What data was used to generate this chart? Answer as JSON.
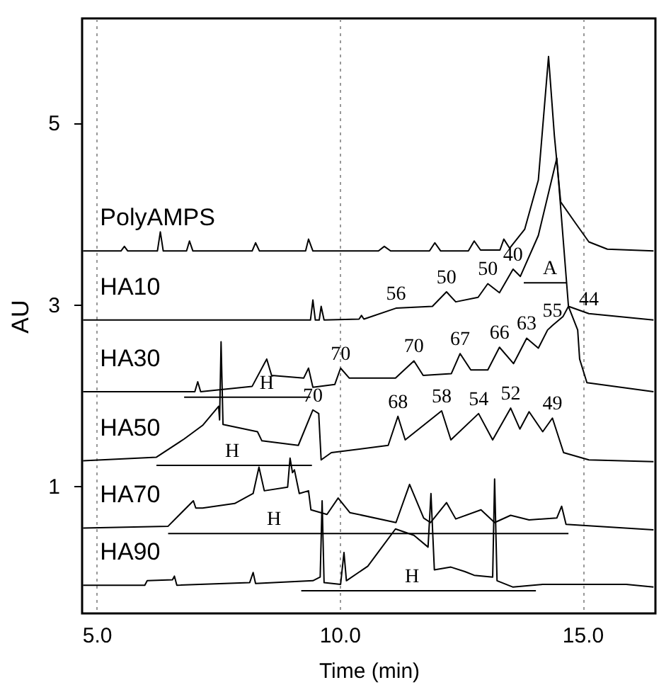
{
  "chart_data": {
    "type": "line",
    "xlabel": "Time (min)",
    "ylabel": "AU",
    "xlim": [
      4.7,
      16.5
    ],
    "ylim": [
      -0.4,
      6.15
    ],
    "xticks": [
      {
        "value": 5,
        "label": "5.0"
      },
      {
        "value": 10,
        "label": "10.0"
      },
      {
        "value": 15,
        "label": "15.0"
      }
    ],
    "yticks": [
      {
        "value": 1,
        "label": "1"
      },
      {
        "value": 3,
        "label": "3"
      },
      {
        "value": 5,
        "label": "5"
      }
    ],
    "grid": "x",
    "legend": "left",
    "line_style": "solid",
    "marker": "none",
    "series": [
      {
        "name": "PolyAMPS",
        "color": "#000000",
        "x": [
          4.72,
          5.5,
          5.57,
          5.64,
          6.25,
          6.31,
          6.37,
          6.85,
          6.91,
          6.98,
          8.2,
          8.27,
          8.35,
          9.3,
          9.36,
          9.45,
          10.8,
          10.92,
          11.05,
          11.85,
          11.96,
          12.08,
          12.65,
          12.77,
          12.9,
          13.3,
          13.38,
          13.5,
          13.81,
          14.09,
          14.3,
          14.42,
          14.55,
          14.85,
          15.13,
          15.51,
          16.46
        ],
        "values": [
          3.59,
          3.59,
          3.64,
          3.59,
          3.59,
          3.8,
          3.59,
          3.59,
          3.7,
          3.59,
          3.59,
          3.68,
          3.59,
          3.59,
          3.72,
          3.59,
          3.59,
          3.64,
          3.59,
          3.59,
          3.68,
          3.59,
          3.59,
          3.7,
          3.6,
          3.6,
          3.72,
          3.62,
          3.83,
          4.37,
          5.73,
          4.86,
          4.13,
          3.9,
          3.69,
          3.61,
          3.59
        ]
      },
      {
        "name": "HA10",
        "color": "#000000",
        "x": [
          4.72,
          9.4,
          9.45,
          9.5,
          9.58,
          9.62,
          9.68,
          10.4,
          10.45,
          10.5,
          11.16,
          11.91,
          12.2,
          12.39,
          12.85,
          13.05,
          13.29,
          13.57,
          13.72,
          14.09,
          14.47,
          14.71,
          15.13,
          16.46
        ],
        "values": [
          2.83,
          2.83,
          3.05,
          2.83,
          2.83,
          2.98,
          2.83,
          2.84,
          2.88,
          2.84,
          2.96,
          2.98,
          3.14,
          3.03,
          3.08,
          3.23,
          3.13,
          3.39,
          3.31,
          3.76,
          4.61,
          2.98,
          2.9,
          2.83
        ]
      },
      {
        "name": "HA30",
        "color": "#000000",
        "x": [
          4.72,
          7.02,
          7.08,
          7.14,
          8.2,
          8.5,
          8.6,
          9.26,
          9.36,
          9.45,
          9.9,
          10.02,
          10.2,
          11.15,
          11.53,
          11.72,
          12.3,
          12.48,
          12.7,
          13.05,
          13.29,
          13.58,
          13.85,
          14.09,
          14.28,
          14.38,
          14.6,
          14.71,
          14.9,
          14.94,
          15.09,
          16.46
        ],
        "values": [
          2.04,
          2.04,
          2.15,
          2.04,
          2.1,
          2.4,
          2.22,
          2.19,
          2.3,
          2.09,
          2.12,
          2.3,
          2.19,
          2.19,
          2.38,
          2.22,
          2.24,
          2.46,
          2.28,
          2.28,
          2.53,
          2.35,
          2.63,
          2.52,
          2.72,
          2.77,
          2.87,
          2.98,
          2.72,
          2.4,
          2.14,
          2.04
        ]
      },
      {
        "name": "HA50",
        "color": "#000000",
        "x": [
          4.72,
          6.23,
          6.8,
          7.18,
          7.51,
          7.53,
          7.56,
          7.6,
          8.31,
          8.4,
          9.15,
          9.45,
          9.57,
          9.62,
          9.83,
          11.0,
          11.2,
          11.35,
          12.1,
          12.29,
          12.86,
          13.15,
          13.52,
          13.71,
          13.9,
          14.18,
          14.38,
          14.61,
          15.13,
          16.46
        ],
        "values": [
          1.28,
          1.32,
          1.52,
          1.67,
          1.88,
          1.73,
          2.59,
          1.68,
          1.6,
          1.5,
          1.45,
          1.84,
          1.8,
          1.29,
          1.37,
          1.45,
          1.77,
          1.51,
          1.83,
          1.51,
          1.8,
          1.51,
          1.86,
          1.63,
          1.82,
          1.6,
          1.75,
          1.37,
          1.29,
          1.27
        ]
      },
      {
        "name": "HA70",
        "color": "#000000",
        "x": [
          4.72,
          6.47,
          6.99,
          7.04,
          7.18,
          7.84,
          8.22,
          8.34,
          8.45,
          8.93,
          8.98,
          9.03,
          9.07,
          9.17,
          9.36,
          9.41,
          9.74,
          9.97,
          10.21,
          11.16,
          11.44,
          11.73,
          11.87,
          12.2,
          12.39,
          12.91,
          13.19,
          13.52,
          13.9,
          14.47,
          14.57,
          14.66,
          16.46
        ],
        "values": [
          0.54,
          0.56,
          0.84,
          0.76,
          0.76,
          0.81,
          0.92,
          1.21,
          0.95,
          0.99,
          1.31,
          1.15,
          1.18,
          0.92,
          0.95,
          0.74,
          0.69,
          0.87,
          0.71,
          0.6,
          1.02,
          0.65,
          0.6,
          0.82,
          0.64,
          0.74,
          0.6,
          0.68,
          0.63,
          0.65,
          0.78,
          0.58,
          0.52
        ]
      },
      {
        "name": "HA90",
        "color": "#000000",
        "x": [
          4.72,
          5.99,
          6.04,
          6.56,
          6.6,
          6.65,
          8.15,
          8.22,
          8.27,
          9.45,
          9.6,
          9.64,
          9.68,
          10.02,
          10.09,
          10.14,
          10.58,
          11.15,
          11.53,
          11.82,
          11.88,
          11.95,
          12.29,
          12.58,
          12.77,
          13.15,
          13.19,
          13.24,
          13.57,
          14.18,
          15.9,
          16.46
        ],
        "values": [
          -0.09,
          -0.09,
          -0.04,
          -0.03,
          0.01,
          -0.09,
          -0.06,
          0.05,
          -0.07,
          -0.04,
          0.0,
          0.84,
          -0.06,
          -0.08,
          0.27,
          -0.04,
          0.12,
          0.53,
          0.46,
          0.33,
          0.92,
          0.08,
          0.11,
          0.06,
          0.02,
          0.0,
          1.08,
          -0.04,
          -0.11,
          -0.08,
          -0.08,
          -0.11
        ]
      },
      {
        "color": "#000000",
        "x": [
          6.8,
          9.4
        ],
        "values": [
          1.98,
          1.98
        ]
      },
      {
        "color": "#000000",
        "x": [
          6.23,
          9.43
        ],
        "values": [
          1.23,
          1.23
        ]
      },
      {
        "color": "#000000",
        "x": [
          6.47,
          14.71
        ],
        "values": [
          0.48,
          0.48
        ]
      },
      {
        "color": "#000000",
        "x": [
          9.21,
          14.04
        ],
        "values": [
          -0.15,
          -0.15
        ]
      },
      {
        "color": "#000000",
        "x": [
          13.79,
          14.68
        ],
        "values": [
          3.24,
          3.24
        ]
      }
    ],
    "annotations": [
      {
        "text": "56",
        "x": 11.16,
        "y": 2.96
      },
      {
        "text": "50",
        "x": 12.2,
        "y": 3.14
      },
      {
        "text": "50",
        "x": 13.05,
        "y": 3.23
      },
      {
        "text": "40",
        "x": 13.57,
        "y": 3.39
      },
      {
        "text": "A",
        "x": 14.33,
        "y": 3.24
      },
      {
        "text": "44",
        "x": 15.13,
        "y": 2.9
      },
      {
        "text": "70",
        "x": 10.02,
        "y": 2.3
      },
      {
        "text": "70",
        "x": 11.53,
        "y": 2.38
      },
      {
        "text": "67",
        "x": 12.48,
        "y": 2.46
      },
      {
        "text": "66",
        "x": 13.29,
        "y": 2.53
      },
      {
        "text": "63",
        "x": 13.85,
        "y": 2.63
      },
      {
        "text": "55",
        "x": 14.38,
        "y": 2.77
      },
      {
        "text": "H",
        "x": 8.5,
        "y": 1.98
      },
      {
        "text": "70",
        "x": 9.45,
        "y": 1.84
      },
      {
        "text": "68",
        "x": 11.2,
        "y": 1.77
      },
      {
        "text": "58",
        "x": 12.1,
        "y": 1.83
      },
      {
        "text": "54",
        "x": 12.86,
        "y": 1.8
      },
      {
        "text": "52",
        "x": 13.52,
        "y": 1.86
      },
      {
        "text": "49",
        "x": 14.38,
        "y": 1.75
      },
      {
        "text": "H",
        "x": 7.79,
        "y": 1.23
      },
      {
        "text": "H",
        "x": 8.65,
        "y": 0.48
      },
      {
        "text": "H",
        "x": 11.49,
        "y": -0.15
      }
    ]
  }
}
